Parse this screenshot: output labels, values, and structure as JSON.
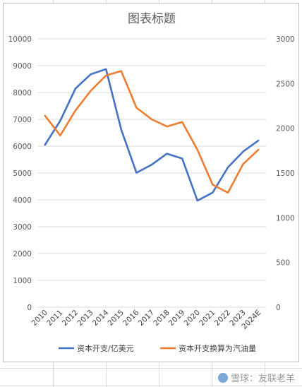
{
  "chart_data": {
    "type": "line",
    "title": "图表标题",
    "categories": [
      "2010",
      "2011",
      "2012",
      "2013",
      "2014",
      "2015",
      "2016",
      "2017",
      "2018",
      "2019",
      "2020",
      "2021",
      "2022",
      "2023",
      "2024E"
    ],
    "left_axis": {
      "min": 0,
      "max": 10000,
      "step": 1000,
      "ticks": [
        "0",
        "1000",
        "2000",
        "3000",
        "4000",
        "5000",
        "6000",
        "7000",
        "8000",
        "9000",
        "10000"
      ]
    },
    "right_axis": {
      "min": 0,
      "max": 3000,
      "step": 500,
      "ticks": [
        "0",
        "500",
        "1000",
        "1500",
        "2000",
        "2500",
        "3000"
      ]
    },
    "series": [
      {
        "name": "资本开支/亿美元",
        "axis": "left",
        "color": "#4472c4",
        "values": [
          6050,
          6950,
          8150,
          8680,
          8870,
          6620,
          5010,
          5310,
          5720,
          5540,
          3970,
          4270,
          5210,
          5800,
          6210
        ]
      },
      {
        "name": "资本开支换算为汽油量",
        "axis": "right",
        "color": "#ed7d31",
        "values": [
          2140,
          1920,
          2200,
          2420,
          2590,
          2640,
          2230,
          2100,
          2020,
          2070,
          1760,
          1370,
          1280,
          1600,
          1760
        ]
      }
    ],
    "grid": true,
    "legend_position": "bottom"
  },
  "watermark": {
    "text": "雪球：友联老羊"
  }
}
